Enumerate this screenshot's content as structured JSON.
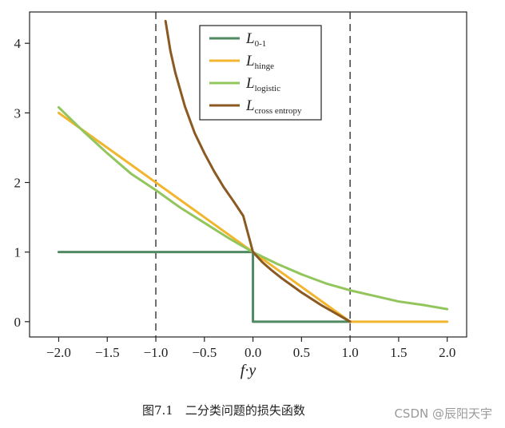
{
  "caption": "图7.1　二分类问题的损失函数",
  "watermark": "CSDN @辰阳天宇",
  "chart_data": {
    "type": "line",
    "title": "",
    "xlabel": "f·y",
    "ylabel": "",
    "xlim": [
      -2.3,
      2.2
    ],
    "ylim": [
      -0.22,
      4.45
    ],
    "x_ticks": [
      "−2.0",
      "−1.5",
      "−1.0",
      "−0.5",
      "0.0",
      "0.5",
      "1.0",
      "1.5",
      "2.0"
    ],
    "y_ticks": [
      "0",
      "1",
      "2",
      "3",
      "4"
    ],
    "grid": false,
    "legend_position": "top-center",
    "vertical_reference_lines": [
      -1.0,
      1.0
    ],
    "series": [
      {
        "name": "L",
        "subscript": "0-1",
        "color": "#4f8a63",
        "x": [
          -2.0,
          0.0,
          0.0,
          1.0
        ],
        "y": [
          1.0,
          1.0,
          0.0,
          0.0
        ]
      },
      {
        "name": "L",
        "subscript": "hinge",
        "color": "#f2b52e",
        "x": [
          -2.0,
          1.0,
          2.0
        ],
        "y": [
          3.0,
          0.0,
          0.0
        ]
      },
      {
        "name": "L",
        "subscript": "logistic",
        "color": "#93c55d",
        "x": [
          -2.0,
          -1.75,
          -1.5,
          -1.25,
          -1.0,
          -0.75,
          -0.5,
          -0.25,
          0.0,
          0.25,
          0.5,
          0.75,
          1.0,
          1.25,
          1.5,
          1.75,
          2.0
        ],
        "y": [
          3.08,
          2.74,
          2.42,
          2.12,
          1.89,
          1.64,
          1.42,
          1.2,
          1.0,
          0.83,
          0.68,
          0.55,
          0.45,
          0.37,
          0.29,
          0.24,
          0.18
        ]
      },
      {
        "name": "L",
        "subscript": "cross entropy",
        "color": "#8b5a22",
        "x": [
          -0.9,
          -0.85,
          -0.8,
          -0.7,
          -0.6,
          -0.5,
          -0.4,
          -0.3,
          -0.2,
          -0.1,
          0.0,
          0.1,
          0.2,
          0.3,
          0.4,
          0.5,
          0.6,
          0.7,
          0.8,
          0.9,
          1.0
        ],
        "y": [
          4.32,
          3.89,
          3.58,
          3.09,
          2.71,
          2.42,
          2.16,
          1.93,
          1.73,
          1.52,
          1.0,
          0.85,
          0.73,
          0.62,
          0.52,
          0.42,
          0.33,
          0.24,
          0.16,
          0.08,
          0.0
        ]
      }
    ]
  }
}
